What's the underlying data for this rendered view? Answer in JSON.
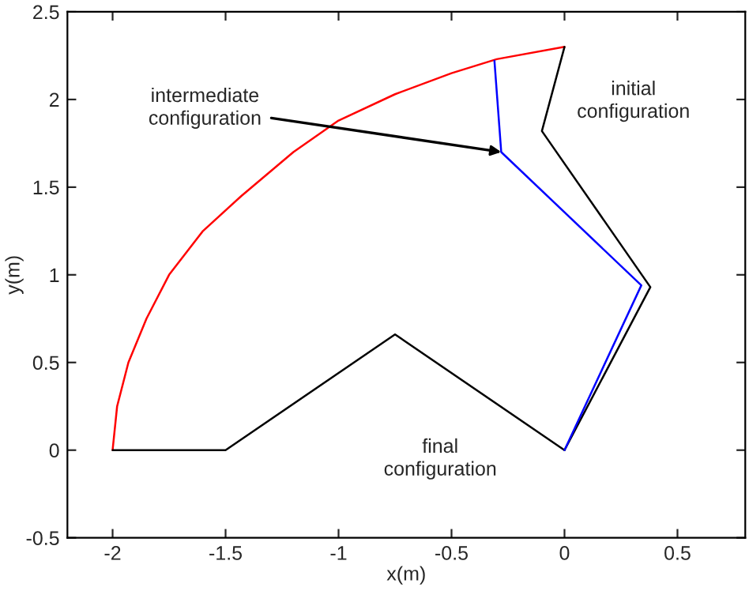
{
  "chart_data": {
    "type": "line",
    "xlabel": "x(m)",
    "ylabel": "y(m)",
    "xlim": [
      -2.2,
      0.8
    ],
    "ylim": [
      -0.5,
      2.5
    ],
    "xticks": [
      -2,
      -1.5,
      -1,
      -0.5,
      0,
      0.5
    ],
    "yticks": [
      -0.5,
      0,
      0.5,
      1,
      1.5,
      2,
      2.5
    ],
    "grid": false,
    "marker": "none",
    "line_style": "solid",
    "series": [
      {
        "color": "#ff0000",
        "x": [
          -2,
          -1.98,
          -1.93,
          -1.85,
          -1.75,
          -1.6,
          -1.43,
          -1.2,
          -1.0,
          -0.75,
          -0.5,
          -0.3,
          0
        ],
        "values": [
          0,
          0.25,
          0.5,
          0.75,
          1.0,
          1.25,
          1.45,
          1.7,
          1.88,
          2.03,
          2.15,
          2.23,
          2.3
        ]
      },
      {
        "color": "#000000",
        "x": [
          -2,
          -1.5,
          -0.75,
          0
        ],
        "values": [
          0,
          0,
          0.66,
          0
        ]
      },
      {
        "color": "#000000",
        "x": [
          0,
          0.38,
          -0.1,
          0
        ],
        "values": [
          0,
          0.93,
          1.82,
          2.3
        ]
      },
      {
        "color": "#0000ff",
        "x": [
          0,
          0.34,
          -0.28,
          -0.31
        ],
        "values": [
          0,
          0.94,
          1.7,
          2.22
        ]
      }
    ],
    "annotations": [
      "initial\nconfiguration",
      "final\nconfiguration",
      {
        "text": "intermediate\nconfiguration",
        "x": -0.28,
        "y": 1.7
      }
    ]
  }
}
